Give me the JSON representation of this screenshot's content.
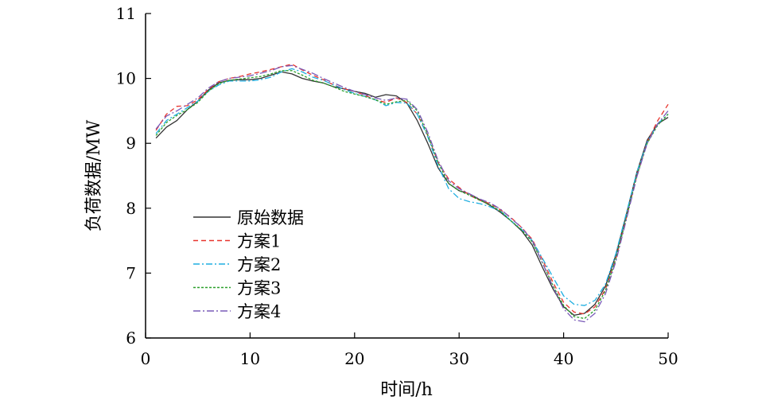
{
  "chart_data": {
    "type": "line",
    "title": "",
    "xlabel": "时间/h",
    "ylabel": "负荷数据/MW",
    "xlim": [
      0,
      50
    ],
    "ylim": [
      6,
      11
    ],
    "xticks": [
      0,
      10,
      20,
      30,
      40,
      50
    ],
    "yticks": [
      6,
      7,
      8,
      9,
      10,
      11
    ],
    "grid": false,
    "legend_position": "center-left",
    "x": [
      1,
      2,
      3,
      4,
      5,
      6,
      7,
      8,
      9,
      10,
      11,
      12,
      13,
      14,
      15,
      16,
      17,
      18,
      19,
      20,
      21,
      22,
      23,
      24,
      25,
      26,
      27,
      28,
      29,
      30,
      31,
      32,
      33,
      34,
      35,
      36,
      37,
      38,
      39,
      40,
      41,
      42,
      43,
      44,
      45,
      46,
      47,
      48,
      49,
      50
    ],
    "series": [
      {
        "name": "原始数据",
        "color": "#333333",
        "dash": "none",
        "values": [
          9.08,
          9.25,
          9.35,
          9.52,
          9.65,
          9.82,
          9.93,
          9.97,
          9.98,
          9.98,
          10.0,
          10.05,
          10.1,
          10.07,
          10.0,
          9.96,
          9.93,
          9.87,
          9.84,
          9.8,
          9.77,
          9.71,
          9.75,
          9.73,
          9.62,
          9.35,
          9.0,
          8.62,
          8.38,
          8.27,
          8.22,
          8.13,
          8.04,
          7.93,
          7.8,
          7.65,
          7.43,
          7.08,
          6.75,
          6.48,
          6.35,
          6.38,
          6.52,
          6.8,
          7.28,
          7.9,
          8.55,
          9.05,
          9.3,
          9.4
        ]
      },
      {
        "name": "方案1",
        "color": "#e8352e",
        "dash": "6,4",
        "values": [
          9.2,
          9.45,
          9.57,
          9.58,
          9.67,
          9.83,
          9.95,
          10.0,
          10.03,
          10.07,
          10.1,
          10.14,
          10.18,
          10.22,
          10.13,
          10.05,
          9.98,
          9.9,
          9.84,
          9.8,
          9.74,
          9.67,
          9.63,
          9.7,
          9.63,
          9.45,
          9.12,
          8.7,
          8.45,
          8.32,
          8.2,
          8.12,
          8.07,
          7.97,
          7.85,
          7.7,
          7.52,
          7.2,
          6.85,
          6.55,
          6.4,
          6.37,
          6.48,
          6.75,
          7.22,
          7.85,
          8.5,
          9.02,
          9.35,
          9.6
        ]
      },
      {
        "name": "方案2",
        "color": "#1eaee0",
        "dash": "8,3,2,3",
        "values": [
          9.15,
          9.35,
          9.45,
          9.55,
          9.65,
          9.8,
          9.9,
          9.96,
          9.96,
          9.96,
          9.98,
          10.02,
          10.1,
          10.15,
          10.1,
          10.02,
          9.97,
          9.9,
          9.83,
          9.77,
          9.72,
          9.67,
          9.58,
          9.63,
          9.62,
          9.45,
          9.1,
          8.65,
          8.3,
          8.15,
          8.1,
          8.07,
          8.02,
          7.95,
          7.8,
          7.67,
          7.5,
          7.22,
          6.93,
          6.65,
          6.52,
          6.5,
          6.58,
          6.83,
          7.3,
          7.92,
          8.55,
          9.02,
          9.3,
          9.45
        ]
      },
      {
        "name": "方案3",
        "color": "#2ca02c",
        "dash": "3,2",
        "values": [
          9.12,
          9.32,
          9.43,
          9.52,
          9.63,
          9.8,
          9.92,
          9.97,
          9.99,
          10.01,
          10.03,
          10.07,
          10.12,
          10.12,
          10.05,
          9.97,
          9.93,
          9.87,
          9.8,
          9.76,
          9.72,
          9.67,
          9.6,
          9.64,
          9.66,
          9.5,
          9.13,
          8.7,
          8.38,
          8.27,
          8.2,
          8.12,
          8.05,
          7.95,
          7.8,
          7.66,
          7.48,
          7.15,
          6.8,
          6.5,
          6.33,
          6.3,
          6.43,
          6.73,
          7.22,
          7.85,
          8.5,
          9.0,
          9.28,
          9.45
        ]
      },
      {
        "name": "方案4",
        "color": "#7a5bb8",
        "dash": "9,3,2,3",
        "values": [
          9.22,
          9.42,
          9.5,
          9.6,
          9.7,
          9.85,
          9.95,
          10.0,
          10.02,
          10.04,
          10.08,
          10.12,
          10.18,
          10.2,
          10.14,
          10.08,
          10.0,
          9.93,
          9.86,
          9.8,
          9.75,
          9.7,
          9.66,
          9.7,
          9.68,
          9.52,
          9.17,
          8.73,
          8.42,
          8.3,
          8.22,
          8.14,
          8.08,
          7.98,
          7.84,
          7.7,
          7.5,
          7.15,
          6.78,
          6.45,
          6.28,
          6.25,
          6.38,
          6.68,
          7.18,
          7.82,
          8.48,
          9.0,
          9.3,
          9.5
        ]
      }
    ]
  }
}
